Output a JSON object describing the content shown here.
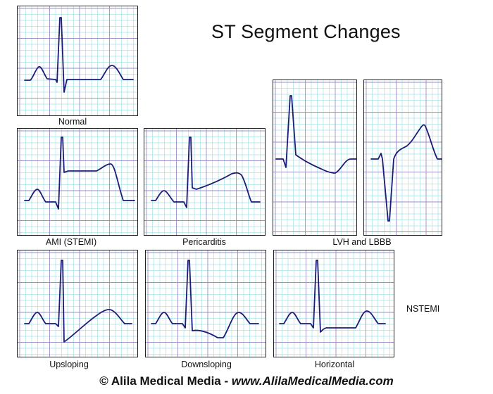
{
  "title": "ST Segment Changes",
  "panels": [
    {
      "id": "normal",
      "label": "Normal"
    },
    {
      "id": "ami",
      "label": "AMI (STEMI)"
    },
    {
      "id": "pericarditis",
      "label": "Pericarditis"
    },
    {
      "id": "lvh",
      "label": "LVH and LBBB"
    },
    {
      "id": "upsloping",
      "label": "Upsloping"
    },
    {
      "id": "downsloping",
      "label": "Downsloping"
    },
    {
      "id": "horizontal",
      "label": "Horizontal"
    }
  ],
  "group_label": "NSTEMI",
  "footer": {
    "copyright": "© Alila Medical Media - ",
    "website": "www.AlilaMedicalMedia.com"
  },
  "colors": {
    "grid_minor": "#a9e3e6",
    "grid_major": "#9a8fc6",
    "trace": "#1c1c78",
    "border": "#222222"
  }
}
